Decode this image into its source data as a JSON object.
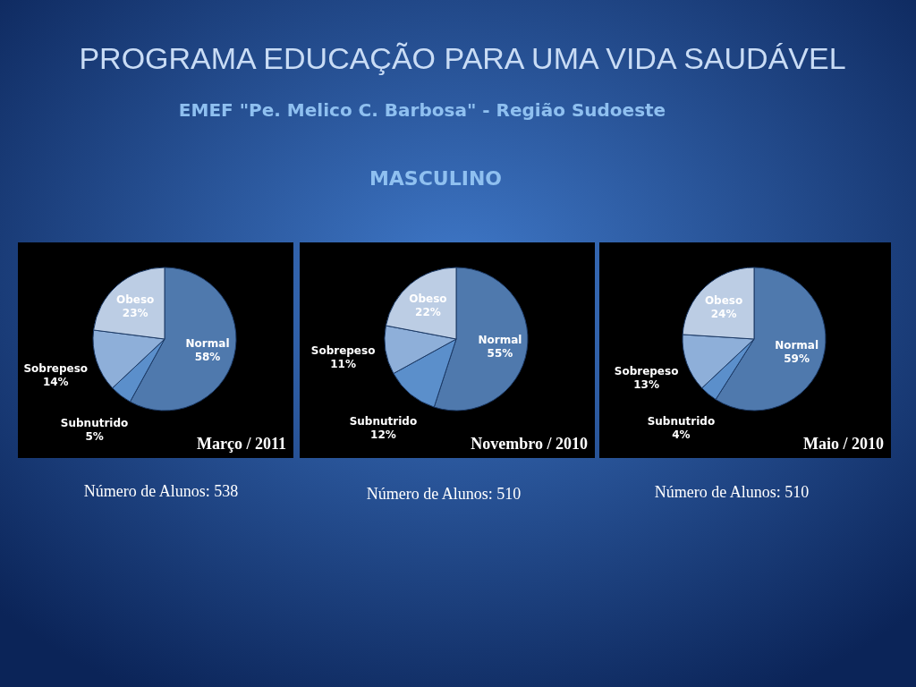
{
  "chart_data": [
    {
      "type": "other",
      "title": "PROGRAMA EDUCAÇÃO PARA UMA VIDA SAUDÁVEL",
      "subtitle": "EMEF \"Pe. Melico C. Barbosa\" - Região Sudoeste",
      "annotations": [
        "MASCULINO"
      ]
    },
    {
      "type": "pie",
      "title": "Março / 2011",
      "categories": [
        "Normal",
        "Subnutrido",
        "Sobrepeso",
        "Obeso"
      ],
      "values": [
        58,
        5,
        14,
        23
      ],
      "value_labels": [
        "58%",
        "5%",
        "14%",
        "23%"
      ],
      "colors": [
        "#4f79ad",
        "#5b8fcb",
        "#8eafd9",
        "#bccde4"
      ],
      "annotations": [
        "Número de Alunos: 538"
      ]
    },
    {
      "type": "pie",
      "title": "Novembro / 2010",
      "categories": [
        "Normal",
        "Subnutrido",
        "Sobrepeso",
        "Obeso"
      ],
      "values": [
        55,
        12,
        11,
        22
      ],
      "value_labels": [
        "55%",
        "12%",
        "11%",
        "22%"
      ],
      "colors": [
        "#4f79ad",
        "#5b8fcb",
        "#8eafd9",
        "#bccde4"
      ],
      "annotations": [
        "Número de Alunos: 510"
      ]
    },
    {
      "type": "pie",
      "title": "Maio / 2010",
      "categories": [
        "Normal",
        "Subnutrido",
        "Sobrepeso",
        "Obeso"
      ],
      "values": [
        59,
        4,
        13,
        24
      ],
      "value_labels": [
        "59%",
        "4%",
        "13%",
        "24%"
      ],
      "colors": [
        "#4f79ad",
        "#5b8fcb",
        "#8eafd9",
        "#bccde4"
      ],
      "annotations": [
        "Número de Alunos: 510"
      ]
    }
  ]
}
